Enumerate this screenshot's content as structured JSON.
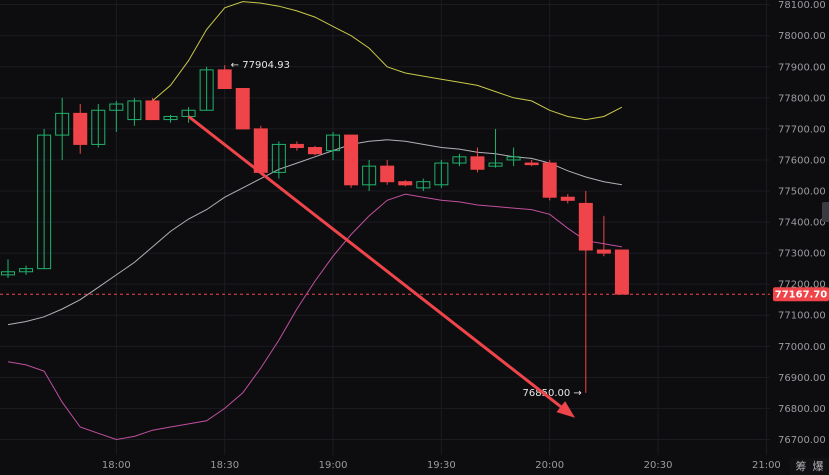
{
  "chart_data": {
    "type": "candlestick",
    "x_ticks": [
      "18:00",
      "18:30",
      "19:00",
      "19:30",
      "20:00",
      "20:30",
      "21:00"
    ],
    "x_tick_values": [
      30,
      60,
      90,
      120,
      150,
      180,
      210
    ],
    "xlim": [
      0,
      211
    ],
    "y_ticks": [
      "78100.00",
      "78000.00",
      "77900.00",
      "77800.00",
      "77700.00",
      "77600.00",
      "77500.00",
      "77400.00",
      "77300.00",
      "77200.00",
      "77100.00",
      "77000.00",
      "76900.00",
      "76800.00",
      "76700.00"
    ],
    "ylim": [
      76650,
      78115
    ],
    "candles": [
      {
        "t": 0,
        "o": 77230,
        "h": 77280,
        "l": 77220,
        "c": 77240
      },
      {
        "t": 5,
        "o": 77240,
        "h": 77260,
        "l": 77230,
        "c": 77250
      },
      {
        "t": 10,
        "o": 77250,
        "h": 77700,
        "l": 77250,
        "c": 77680
      },
      {
        "t": 15,
        "o": 77680,
        "h": 77800,
        "l": 77600,
        "c": 77750
      },
      {
        "t": 20,
        "o": 77750,
        "h": 77780,
        "l": 77620,
        "c": 77650
      },
      {
        "t": 25,
        "o": 77650,
        "h": 77780,
        "l": 77640,
        "c": 77760
      },
      {
        "t": 30,
        "o": 77760,
        "h": 77790,
        "l": 77690,
        "c": 77780
      },
      {
        "t": 35,
        "o": 77730,
        "h": 77800,
        "l": 77710,
        "c": 77790
      },
      {
        "t": 40,
        "o": 77790,
        "h": 77800,
        "l": 77730,
        "c": 77730
      },
      {
        "t": 45,
        "o": 77730,
        "h": 77745,
        "l": 77720,
        "c": 77740
      },
      {
        "t": 50,
        "o": 77740,
        "h": 77770,
        "l": 77720,
        "c": 77760
      },
      {
        "t": 55,
        "o": 77760,
        "h": 77900,
        "l": 77760,
        "c": 77890
      },
      {
        "t": 60,
        "o": 77890,
        "h": 77905,
        "l": 77830,
        "c": 77830
      },
      {
        "t": 65,
        "o": 77830,
        "h": 77830,
        "l": 77700,
        "c": 77700
      },
      {
        "t": 70,
        "o": 77700,
        "h": 77710,
        "l": 77560,
        "c": 77560
      },
      {
        "t": 75,
        "o": 77560,
        "h": 77660,
        "l": 77540,
        "c": 77650
      },
      {
        "t": 80,
        "o": 77650,
        "h": 77660,
        "l": 77630,
        "c": 77640
      },
      {
        "t": 85,
        "o": 77640,
        "h": 77645,
        "l": 77615,
        "c": 77620
      },
      {
        "t": 90,
        "o": 77630,
        "h": 77690,
        "l": 77600,
        "c": 77680
      },
      {
        "t": 95,
        "o": 77680,
        "h": 77680,
        "l": 77510,
        "c": 77520
      },
      {
        "t": 100,
        "o": 77520,
        "h": 77600,
        "l": 77500,
        "c": 77580
      },
      {
        "t": 105,
        "o": 77580,
        "h": 77600,
        "l": 77520,
        "c": 77530
      },
      {
        "t": 110,
        "o": 77530,
        "h": 77535,
        "l": 77515,
        "c": 77520
      },
      {
        "t": 115,
        "o": 77510,
        "h": 77540,
        "l": 77500,
        "c": 77530
      },
      {
        "t": 120,
        "o": 77520,
        "h": 77600,
        "l": 77510,
        "c": 77590
      },
      {
        "t": 125,
        "o": 77590,
        "h": 77620,
        "l": 77580,
        "c": 77610
      },
      {
        "t": 130,
        "o": 77610,
        "h": 77640,
        "l": 77560,
        "c": 77570
      },
      {
        "t": 135,
        "o": 77580,
        "h": 77700,
        "l": 77575,
        "c": 77590
      },
      {
        "t": 140,
        "o": 77600,
        "h": 77640,
        "l": 77580,
        "c": 77610
      },
      {
        "t": 145,
        "o": 77590,
        "h": 77600,
        "l": 77580,
        "c": 77585
      },
      {
        "t": 150,
        "o": 77590,
        "h": 77600,
        "l": 77470,
        "c": 77480
      },
      {
        "t": 155,
        "o": 77480,
        "h": 77490,
        "l": 77460,
        "c": 77470
      },
      {
        "t": 160,
        "o": 77460,
        "h": 77500,
        "l": 76850,
        "c": 77310
      },
      {
        "t": 165,
        "o": 77310,
        "h": 77420,
        "l": 77290,
        "c": 77300
      },
      {
        "t": 170,
        "o": 77310,
        "h": 77310,
        "l": 77168,
        "c": 77168
      }
    ],
    "upper_band": [
      [
        40,
        77790
      ],
      [
        45,
        77840
      ],
      [
        50,
        77920
      ],
      [
        55,
        78020
      ],
      [
        60,
        78090
      ],
      [
        65,
        78110
      ],
      [
        70,
        78105
      ],
      [
        75,
        78095
      ],
      [
        80,
        78080
      ],
      [
        85,
        78060
      ],
      [
        90,
        78030
      ],
      [
        95,
        78000
      ],
      [
        100,
        77960
      ],
      [
        105,
        77900
      ],
      [
        110,
        77880
      ],
      [
        115,
        77870
      ],
      [
        120,
        77860
      ],
      [
        125,
        77850
      ],
      [
        130,
        77840
      ],
      [
        135,
        77820
      ],
      [
        140,
        77800
      ],
      [
        145,
        77790
      ],
      [
        150,
        77760
      ],
      [
        155,
        77740
      ],
      [
        160,
        77730
      ],
      [
        165,
        77740
      ],
      [
        170,
        77770
      ]
    ],
    "middle_band": [
      [
        0,
        77070
      ],
      [
        5,
        77080
      ],
      [
        10,
        77095
      ],
      [
        15,
        77120
      ],
      [
        20,
        77150
      ],
      [
        25,
        77190
      ],
      [
        30,
        77230
      ],
      [
        35,
        77270
      ],
      [
        40,
        77320
      ],
      [
        45,
        77370
      ],
      [
        50,
        77410
      ],
      [
        55,
        77440
      ],
      [
        60,
        77480
      ],
      [
        65,
        77510
      ],
      [
        70,
        77540
      ],
      [
        75,
        77570
      ],
      [
        80,
        77590
      ],
      [
        85,
        77610
      ],
      [
        90,
        77630
      ],
      [
        95,
        77650
      ],
      [
        100,
        77660
      ],
      [
        105,
        77665
      ],
      [
        110,
        77660
      ],
      [
        115,
        77650
      ],
      [
        120,
        77640
      ],
      [
        125,
        77635
      ],
      [
        130,
        77625
      ],
      [
        135,
        77620
      ],
      [
        140,
        77610
      ],
      [
        145,
        77605
      ],
      [
        150,
        77590
      ],
      [
        155,
        77565
      ],
      [
        160,
        77545
      ],
      [
        165,
        77530
      ],
      [
        170,
        77520
      ]
    ],
    "lower_band": [
      [
        0,
        76950
      ],
      [
        5,
        76940
      ],
      [
        10,
        76920
      ],
      [
        15,
        76820
      ],
      [
        20,
        76740
      ],
      [
        25,
        76720
      ],
      [
        30,
        76700
      ],
      [
        35,
        76710
      ],
      [
        40,
        76730
      ],
      [
        45,
        76740
      ],
      [
        50,
        76750
      ],
      [
        55,
        76760
      ],
      [
        60,
        76800
      ],
      [
        65,
        76850
      ],
      [
        70,
        76930
      ],
      [
        75,
        77020
      ],
      [
        80,
        77120
      ],
      [
        85,
        77210
      ],
      [
        90,
        77290
      ],
      [
        95,
        77360
      ],
      [
        100,
        77420
      ],
      [
        105,
        77470
      ],
      [
        110,
        77490
      ],
      [
        115,
        77480
      ],
      [
        120,
        77470
      ],
      [
        125,
        77465
      ],
      [
        130,
        77455
      ],
      [
        135,
        77450
      ],
      [
        140,
        77445
      ],
      [
        145,
        77440
      ],
      [
        150,
        77425
      ],
      [
        155,
        77380
      ],
      [
        160,
        77340
      ],
      [
        165,
        77330
      ],
      [
        170,
        77320
      ]
    ],
    "high_annotation": "77904.93",
    "low_annotation": "76850.00",
    "current_price": "77167.70",
    "current_price_value": 77167.7,
    "arrow": {
      "from": [
        50,
        77740
      ],
      "to": [
        157,
        76770
      ]
    },
    "colors": {
      "up": "#20b26c",
      "down": "#ef454a",
      "upper": "#c8c84a",
      "middle": "#b0b0b8",
      "lower": "#c050a0",
      "arrow": "#ef454a"
    }
  },
  "corner_labels": [
    "筹",
    "爆"
  ]
}
